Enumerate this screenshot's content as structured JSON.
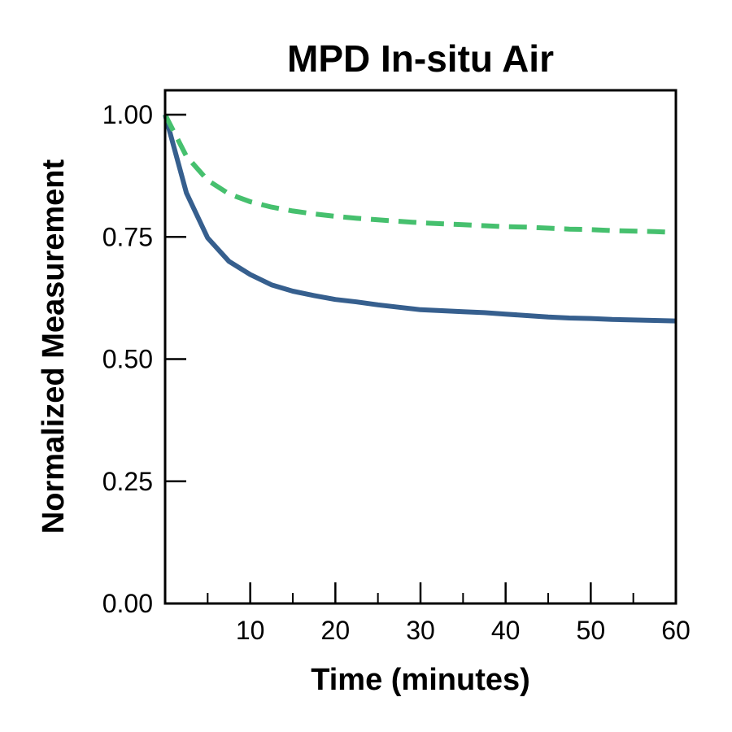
{
  "chart_data": {
    "type": "line",
    "title": "MPD In-situ Air",
    "xlabel": "Time (minutes)",
    "ylabel": "Normalized Measurement",
    "xlim": [
      0,
      60
    ],
    "ylim": [
      0,
      1.05
    ],
    "x_ticks_major": [
      10,
      20,
      30,
      40,
      50,
      60
    ],
    "x_ticks_minor": [
      5,
      15,
      25,
      35,
      45,
      55
    ],
    "y_ticks": [
      0.0,
      0.25,
      0.5,
      0.75,
      1.0
    ],
    "y_tick_labels": [
      "0.00",
      "0.25",
      "0.50",
      "0.75",
      "1.00"
    ],
    "grid": false,
    "legend": "none",
    "series": [
      {
        "style": "solid",
        "color": "#365f8e",
        "x": [
          0,
          2.5,
          5,
          7.5,
          10,
          12.5,
          15,
          17.5,
          20,
          22.5,
          25,
          27.5,
          30,
          32.5,
          35,
          37.5,
          40,
          42.5,
          45,
          47.5,
          50,
          52.5,
          55,
          57.5,
          60
        ],
        "values": [
          1.0,
          0.84,
          0.748,
          0.7,
          0.673,
          0.652,
          0.639,
          0.63,
          0.622,
          0.617,
          0.611,
          0.606,
          0.601,
          0.599,
          0.597,
          0.595,
          0.592,
          0.589,
          0.586,
          0.584,
          0.583,
          0.581,
          0.58,
          0.579,
          0.578
        ]
      },
      {
        "style": "dashed",
        "color": "#46c06e",
        "x": [
          0,
          2.5,
          5,
          7.5,
          10,
          12.5,
          15,
          17.5,
          20,
          22.5,
          25,
          27.5,
          30,
          32.5,
          35,
          37.5,
          40,
          42.5,
          45,
          47.5,
          50,
          52.5,
          55,
          57.5,
          60
        ],
        "values": [
          1.0,
          0.915,
          0.866,
          0.838,
          0.822,
          0.811,
          0.803,
          0.797,
          0.792,
          0.788,
          0.785,
          0.782,
          0.779,
          0.777,
          0.775,
          0.773,
          0.771,
          0.77,
          0.768,
          0.766,
          0.765,
          0.763,
          0.762,
          0.761,
          0.759
        ]
      }
    ]
  }
}
